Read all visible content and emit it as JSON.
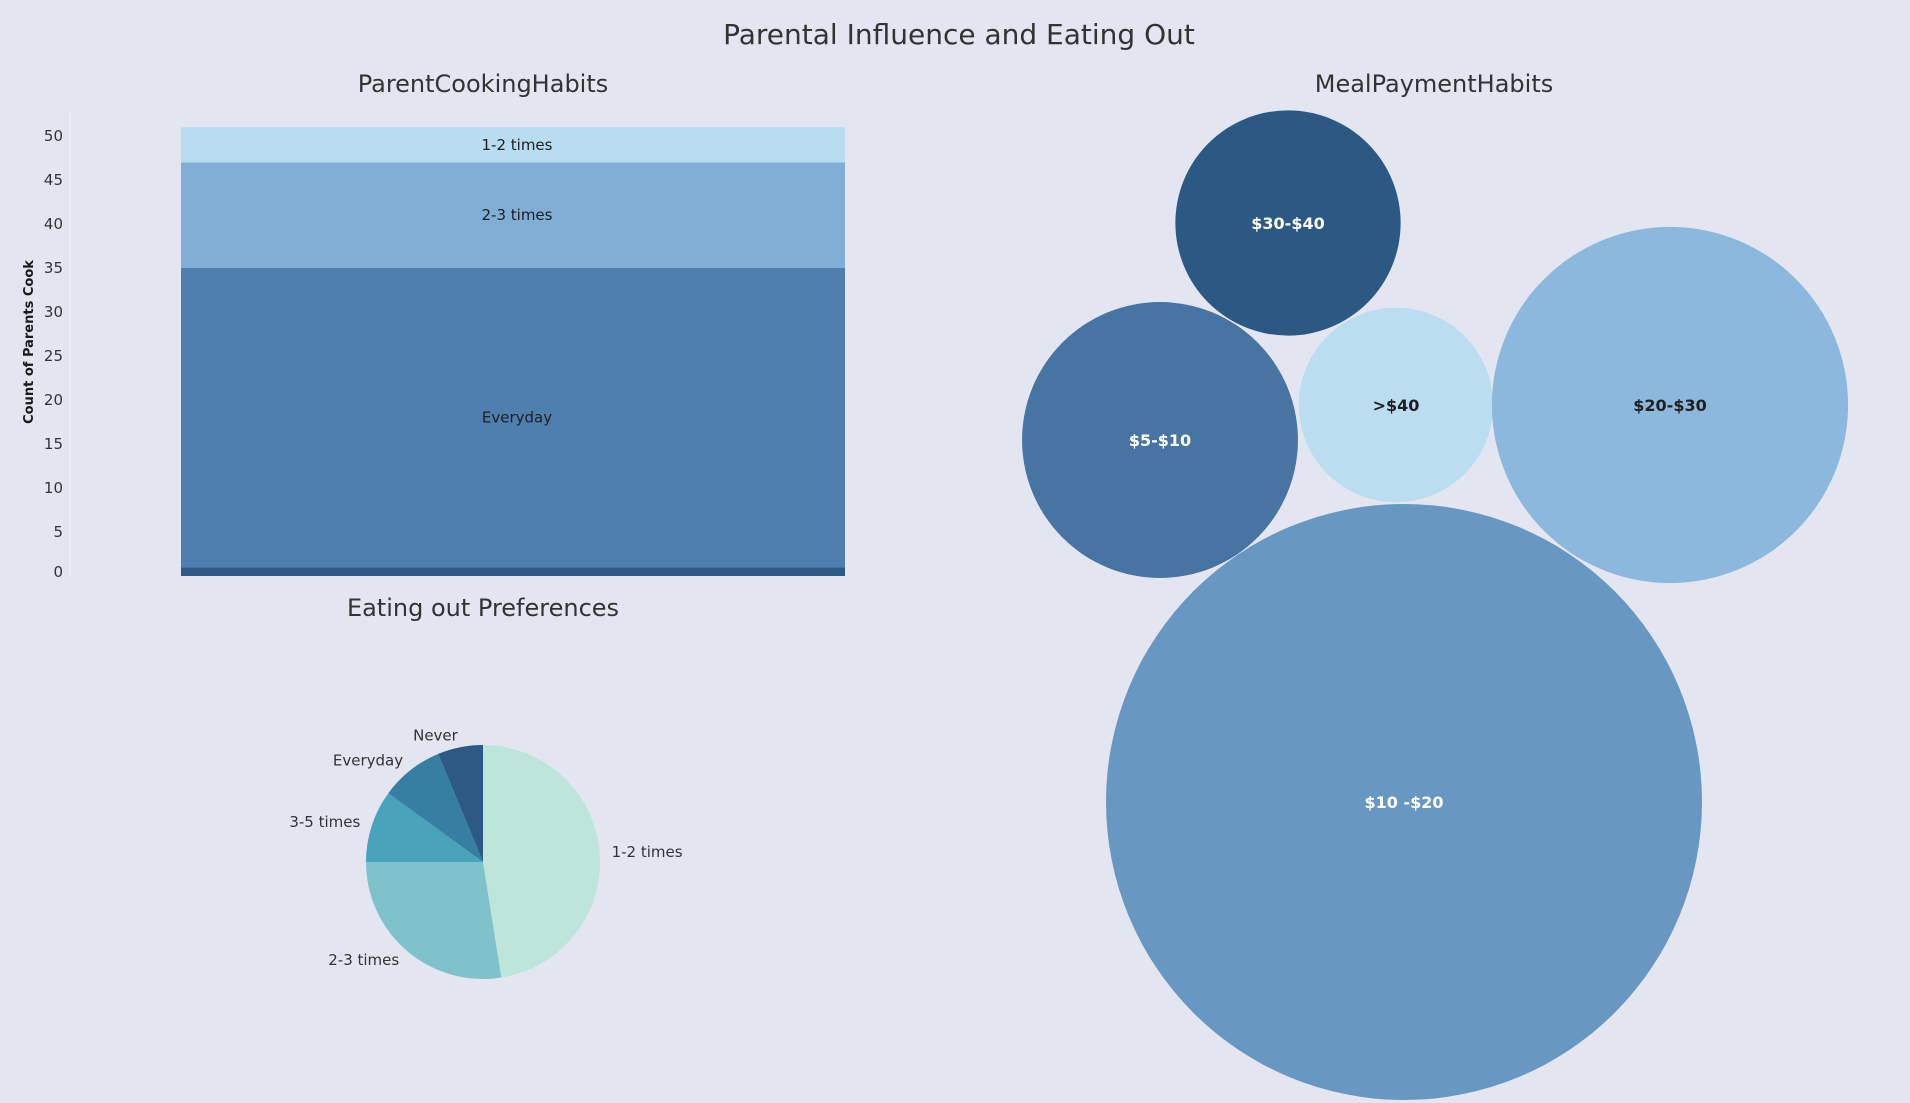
{
  "dashboard": {
    "title": "Parental Influence and Eating Out"
  },
  "chart_data": [
    {
      "id": "parent-cooking",
      "type": "bar",
      "title": "ParentCookingHabits",
      "ylabel": "Count of Parents Cook",
      "xlabel": "",
      "ylim": [
        0,
        50
      ],
      "yticks": [
        0,
        5,
        10,
        15,
        20,
        25,
        30,
        35,
        40,
        45,
        50
      ],
      "stacked": true,
      "grid": false,
      "series": [
        {
          "name": "",
          "value": 1,
          "color": "#2c5a85"
        },
        {
          "name": "Everyday",
          "value": 34,
          "color": "#4f7faf"
        },
        {
          "name": "2-3 times",
          "value": 12,
          "color": "#80aed5"
        },
        {
          "name": "1-2 times",
          "value": 4,
          "color": "#b9ddf0"
        }
      ]
    },
    {
      "id": "eating-out",
      "type": "pie",
      "title": "Eating out Preferences",
      "slices": [
        {
          "label": "1-2 times",
          "value": 47.5,
          "color": "#bde5da"
        },
        {
          "label": "2-3 times",
          "value": 27.5,
          "color": "#80c2cb"
        },
        {
          "label": "3-5 times",
          "value": 10,
          "color": "#48a3bb"
        },
        {
          "label": "Everyday",
          "value": 8.75,
          "color": "#367fa2"
        },
        {
          "label": "Never",
          "value": 6.25,
          "color": "#2c5a85"
        }
      ]
    },
    {
      "id": "meal-payment",
      "type": "bubble",
      "title": "MealPaymentHabits",
      "bubbles": [
        {
          "label": "$30-$40",
          "value": 11,
          "color": "#2c5884",
          "text": "light"
        },
        {
          "label": "$5-$10",
          "value": 16.5,
          "color": "#4774a3",
          "text": "light"
        },
        {
          "label": ">$40",
          "value": 8.2,
          "color": "#badef0",
          "text": "dark"
        },
        {
          "label": "$20-$30",
          "value": 27.5,
          "color": "#8bb8dc",
          "text": "dark"
        },
        {
          "label": "$10 -$20",
          "value": 77,
          "color": "#6898c2",
          "text": "light"
        }
      ]
    }
  ]
}
